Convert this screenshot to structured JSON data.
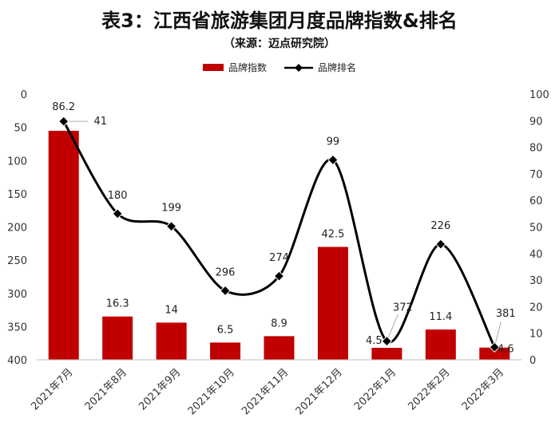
{
  "title": "表3：江西省旅游集团月度品牌指数&排名",
  "subtitle": "（来源：迈点研究院）",
  "colors": {
    "bar": "#c00000",
    "line": "#000000",
    "axis_text": "#333333",
    "leader": "#aaaaaa"
  },
  "chart_data": {
    "type": "bar",
    "categories": [
      "2021年7月",
      "2021年8月",
      "2021年9月",
      "2021年10月",
      "2021年11月",
      "2021年12月",
      "2022年1月",
      "2022年2月",
      "2022年3月"
    ],
    "series": [
      {
        "name": "品牌指数",
        "type": "bar",
        "axis": "right",
        "values": [
          86.2,
          16.3,
          14,
          6.5,
          8.9,
          42.5,
          4.5,
          11.4,
          4.6
        ],
        "labels": [
          "86.2",
          "16.3",
          "14",
          "6.5",
          "8.9",
          "42.5",
          "4.5",
          "11.4",
          "4.6"
        ]
      },
      {
        "name": "品牌排名",
        "type": "line",
        "smooth": true,
        "marker": "diamond",
        "axis": "left-reversed",
        "values": [
          41,
          180,
          199,
          296,
          274,
          99,
          372,
          226,
          381
        ],
        "labels": [
          "41",
          "180",
          "199",
          "296",
          "274",
          "99",
          "372",
          "226",
          "381"
        ]
      }
    ],
    "y_left": {
      "reversed": true,
      "lim": [
        0,
        400
      ],
      "ticks": [
        "0",
        "50",
        "100",
        "150",
        "200",
        "250",
        "300",
        "350",
        "400"
      ]
    },
    "y_right": {
      "lim": [
        0,
        100
      ],
      "ticks": [
        "0",
        "10",
        "20",
        "30",
        "40",
        "50",
        "60",
        "70",
        "80",
        "90",
        "100"
      ]
    },
    "xlabel": "",
    "grid": false,
    "legend_position": "top"
  }
}
